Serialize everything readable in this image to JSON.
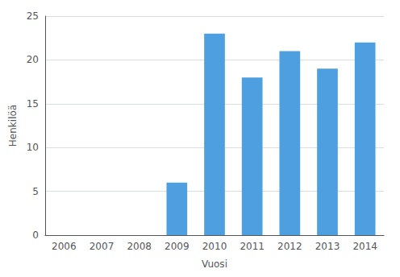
{
  "chart_data": {
    "type": "bar",
    "categories": [
      "2006",
      "2007",
      "2008",
      "2009",
      "2010",
      "2011",
      "2012",
      "2013",
      "2014"
    ],
    "values": [
      0,
      0,
      0,
      6,
      23,
      18,
      21,
      19,
      22
    ],
    "color": "#4D9FE0",
    "xlabel": "Vuosi",
    "ylabel": "Henkilöä",
    "ylim": [
      0,
      25
    ],
    "yticks": [
      0,
      5,
      10,
      15,
      20,
      25
    ],
    "grid": true
  }
}
